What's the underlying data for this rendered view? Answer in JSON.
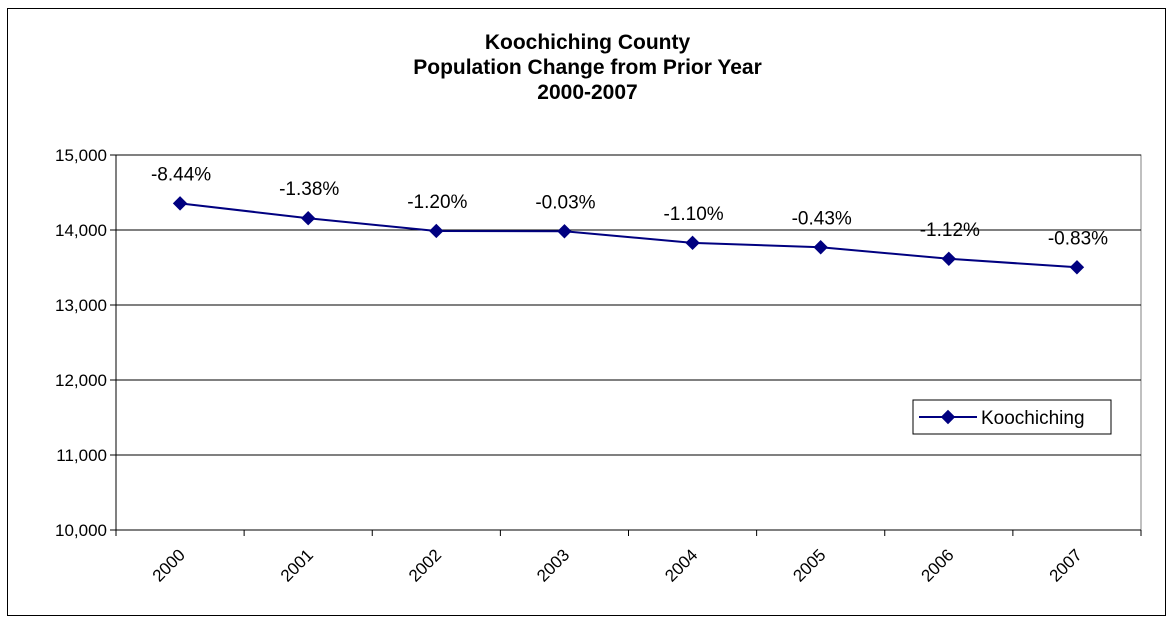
{
  "chart_data": {
    "type": "line",
    "title": [
      "Koochiching County",
      "Population Change from Prior Year",
      "2000-2007"
    ],
    "categories": [
      "2000",
      "2001",
      "2002",
      "2003",
      "2004",
      "2005",
      "2006",
      "2007"
    ],
    "series": [
      {
        "name": "Koochiching",
        "values": [
          14355,
          14157,
          13987,
          13983,
          13829,
          13770,
          13616,
          13503
        ],
        "data_labels": [
          "-8.44%",
          "-1.38%",
          "-1.20%",
          "-0.03%",
          "-1.10%",
          "-0.43%",
          "-1.12%",
          "-0.83%"
        ],
        "color": "#000080"
      }
    ],
    "ylim": [
      10000,
      15000
    ],
    "yticks": [
      10000,
      11000,
      12000,
      13000,
      14000,
      15000
    ],
    "ytick_labels": [
      "10,000",
      "11,000",
      "12,000",
      "13,000",
      "14,000",
      "15,000"
    ],
    "xlabel": "",
    "ylabel": "",
    "grid": true,
    "legend_position": "right"
  }
}
